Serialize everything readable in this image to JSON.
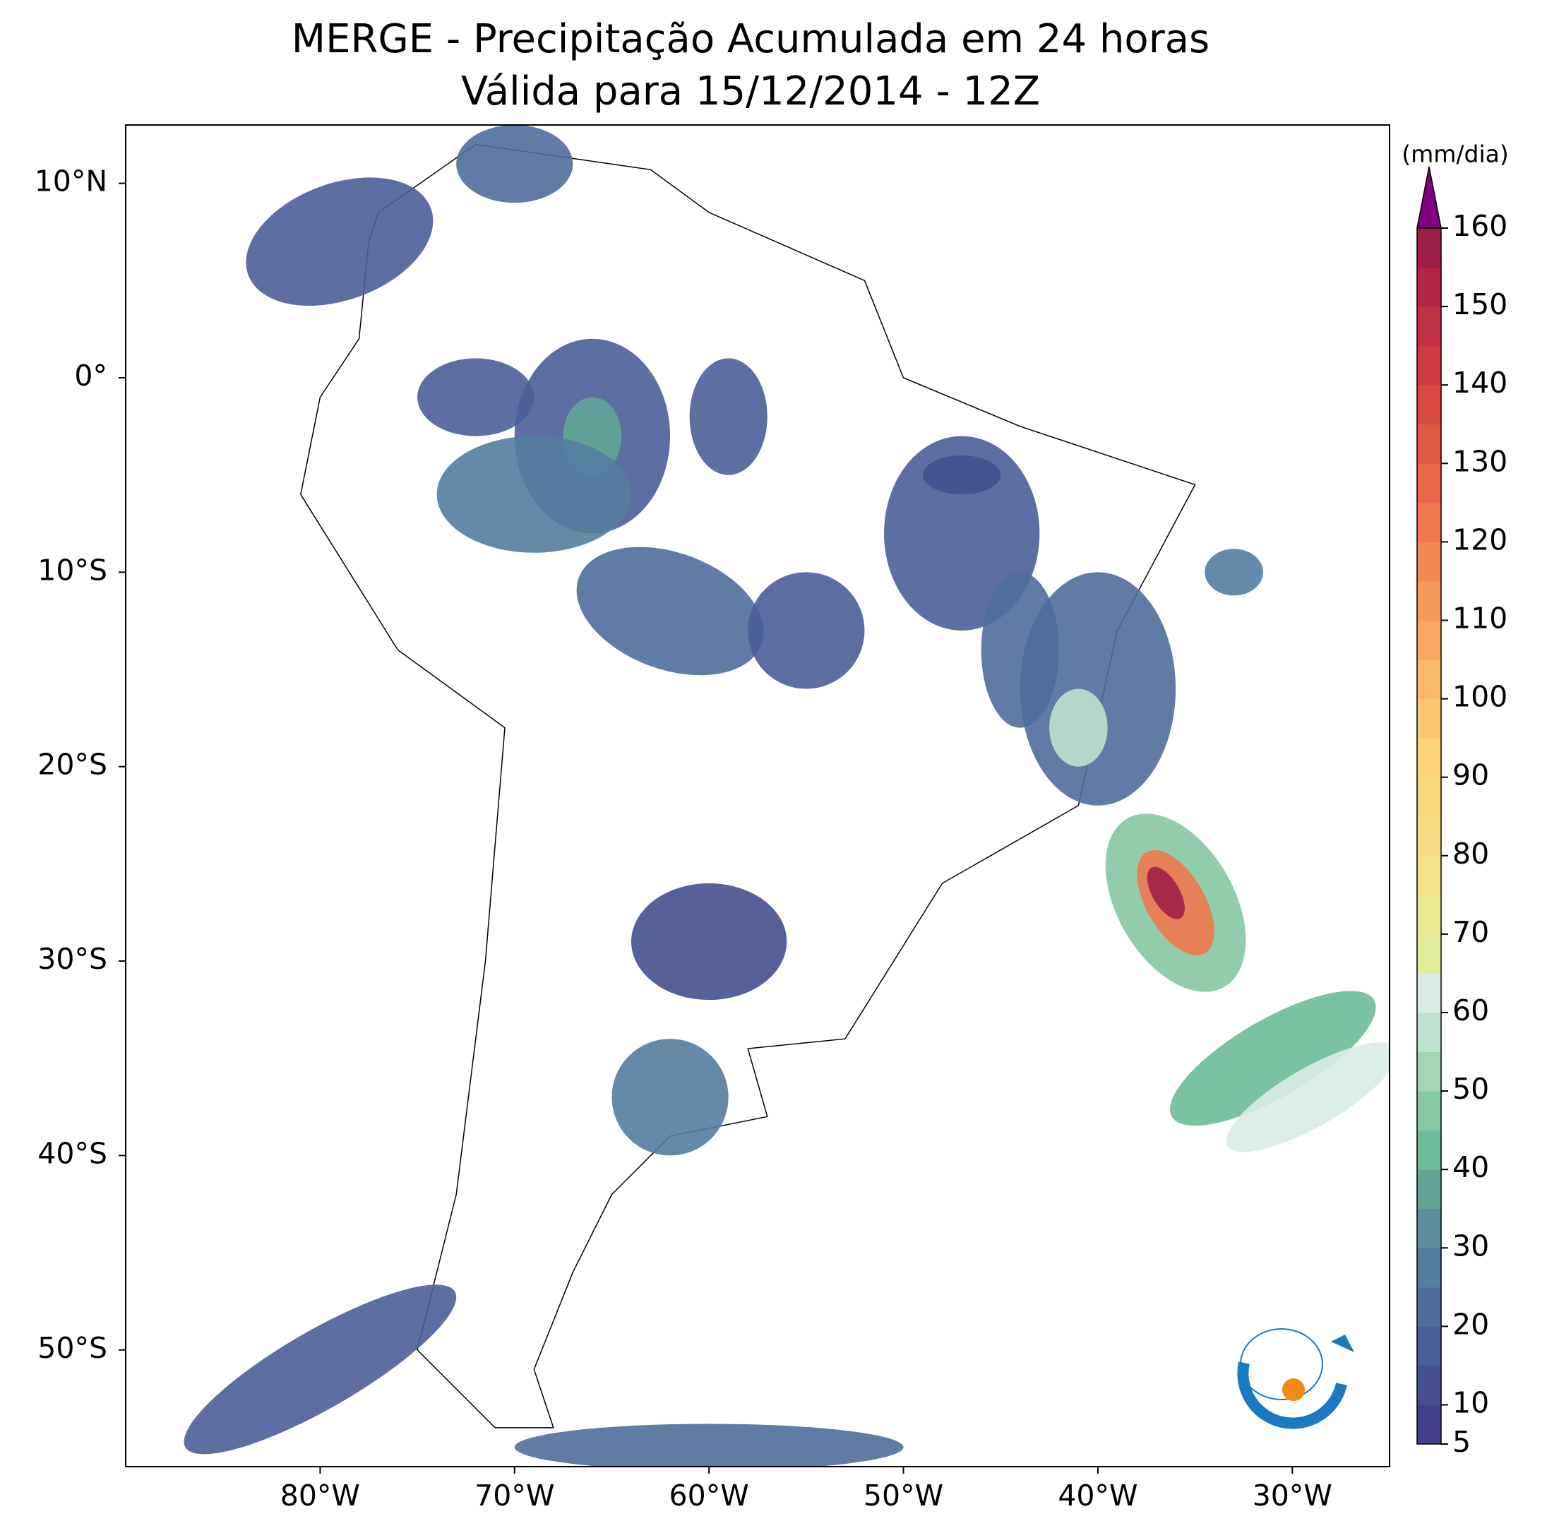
{
  "chart_data": {
    "type": "map",
    "title": "MERGE - Precipitação Acumulada em 24 horas",
    "subtitle": "Válida para 15/12/2014 - 12Z",
    "xlim": [
      -90,
      -25
    ],
    "ylim": [
      -56,
      13
    ],
    "xticks": [
      {
        "value": -80,
        "label": "80°W"
      },
      {
        "value": -70,
        "label": "70°W"
      },
      {
        "value": -60,
        "label": "60°W"
      },
      {
        "value": -50,
        "label": "50°W"
      },
      {
        "value": -40,
        "label": "40°W"
      },
      {
        "value": -30,
        "label": "30°W"
      }
    ],
    "yticks": [
      {
        "value": 10,
        "label": "10°N"
      },
      {
        "value": 0,
        "label": "0°"
      },
      {
        "value": -10,
        "label": "10°S"
      },
      {
        "value": -20,
        "label": "20°S"
      },
      {
        "value": -30,
        "label": "30°S"
      },
      {
        "value": -40,
        "label": "40°S"
      },
      {
        "value": -50,
        "label": "50°S"
      }
    ],
    "colorbar": {
      "label": "(mm/dia)",
      "levels": [
        5,
        10,
        15,
        20,
        25,
        30,
        35,
        40,
        45,
        50,
        55,
        60,
        65,
        70,
        75,
        80,
        85,
        90,
        95,
        100,
        105,
        110,
        115,
        120,
        125,
        130,
        135,
        140,
        145,
        150,
        155,
        160
      ],
      "colors": [
        "#423f8c",
        "#44508f",
        "#4a5e98",
        "#4e6d9c",
        "#547c9e",
        "#5a8f9b",
        "#62a596",
        "#6dbb98",
        "#86c8a2",
        "#a3d5b3",
        "#bfe1cf",
        "#d9ece6",
        "#e2ed9a",
        "#ece88f",
        "#f2e08a",
        "#f7dc83",
        "#f9d87c",
        "#fcd379",
        "#fcc670",
        "#fbb76a",
        "#f8a863",
        "#f59a5c",
        "#f28953",
        "#ef784c",
        "#ea6847",
        "#e25844",
        "#da4941",
        "#cf3b42",
        "#c32f45",
        "#b42547",
        "#a01e4a"
      ],
      "extend_color": "#800080",
      "ticks": [
        5,
        10,
        20,
        30,
        40,
        50,
        60,
        70,
        80,
        90,
        100,
        110,
        120,
        130,
        140,
        150,
        160
      ]
    },
    "logo_text": "INPE"
  }
}
